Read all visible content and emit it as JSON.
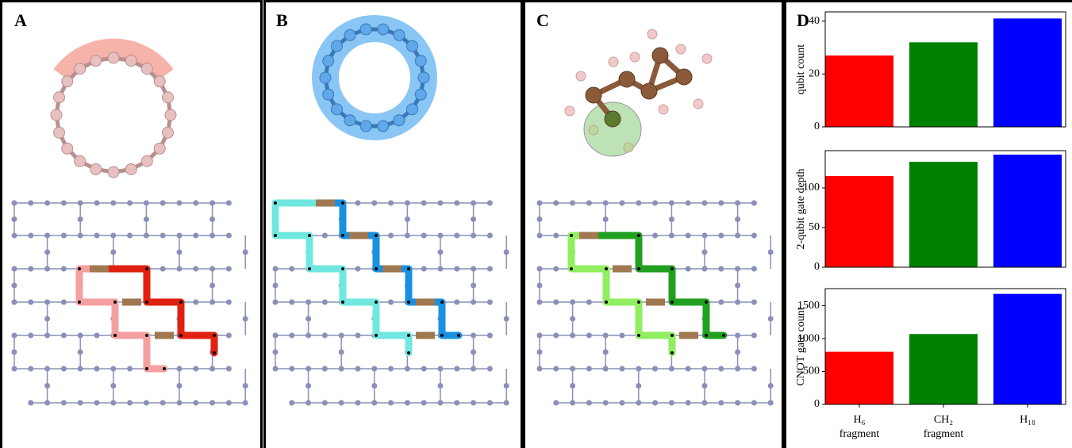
{
  "panels": {
    "labels": [
      "A",
      "B",
      "C",
      "D"
    ]
  },
  "chart_data": [
    {
      "type": "bar",
      "ylabel": "qubit count",
      "values": [
        27,
        32,
        41
      ],
      "colors": [
        "#ff0000",
        "#008000",
        "#0000ff"
      ],
      "ylim": [
        0,
        43.5
      ],
      "yticks": [
        0,
        20,
        40
      ]
    },
    {
      "type": "bar",
      "ylabel": "2-qubit gate depth",
      "values": [
        115,
        133,
        142
      ],
      "colors": [
        "#ff0000",
        "#008000",
        "#0000ff"
      ],
      "ylim": [
        0,
        147
      ],
      "yticks": [
        0,
        50,
        100
      ]
    },
    {
      "type": "bar",
      "ylabel": "CNOT gate count",
      "categories": [
        "H₆ fragment",
        "CH₂ fragment",
        "H₁₈"
      ],
      "values": [
        800,
        1070,
        1680
      ],
      "colors": [
        "#ff0000",
        "#008000",
        "#0000ff"
      ],
      "ylim": [
        0,
        1760
      ],
      "yticks": [
        0,
        500,
        1000,
        1500
      ]
    }
  ]
}
